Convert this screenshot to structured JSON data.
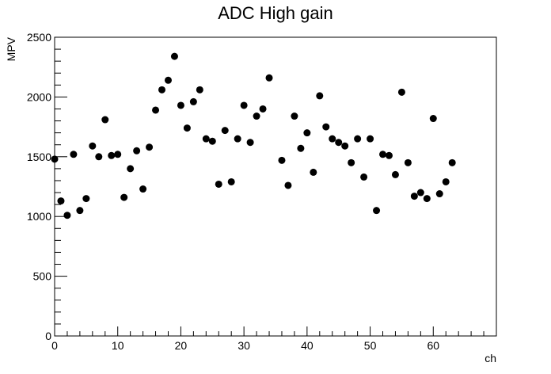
{
  "chart_data": {
    "type": "scatter",
    "title": "ADC High gain",
    "xlabel": "ch",
    "ylabel": "MPV",
    "xlim": [
      0,
      70
    ],
    "ylim": [
      0,
      2500
    ],
    "x_major_ticks": [
      0,
      10,
      20,
      30,
      40,
      50,
      60
    ],
    "y_major_ticks": [
      0,
      500,
      1000,
      1500,
      2000,
      2500
    ],
    "x_minor_step": 2,
    "y_minor_step": 100,
    "grid": false,
    "legend": "none",
    "marker_color": "#000000",
    "series": [
      {
        "x": [
          0,
          1,
          2,
          3,
          4,
          5,
          6,
          7,
          8,
          9,
          10,
          11,
          12,
          13,
          14,
          15,
          16,
          17,
          18,
          19,
          20,
          21,
          22,
          23,
          24,
          25,
          26,
          27,
          28,
          29,
          30,
          31,
          32,
          33,
          34,
          35,
          36,
          37,
          38,
          39,
          40,
          41,
          42,
          43,
          44,
          45,
          46,
          47,
          48,
          49,
          50,
          51,
          52,
          53,
          54,
          55,
          56,
          57,
          58,
          59,
          60,
          61,
          62,
          63
        ],
        "y": [
          1480,
          1130,
          1010,
          1520,
          1050,
          1150,
          1590,
          1500,
          1810,
          1510,
          1520,
          1160,
          1400,
          1550,
          1230,
          1580,
          1890,
          2060,
          2140,
          2340,
          1930,
          1740,
          1960,
          2060,
          1650,
          1630,
          1270,
          1720,
          1290,
          1650,
          1930,
          1620,
          1840,
          1900,
          2160,
          null,
          1470,
          1260,
          1840,
          1570,
          1700,
          1370,
          2010,
          1750,
          1650,
          1620,
          1590,
          1450,
          1650,
          1330,
          1650,
          1050,
          1520,
          1510,
          1350,
          2040,
          1450,
          1170,
          1200,
          1150,
          1820,
          1190,
          1290,
          1450
        ]
      }
    ]
  }
}
